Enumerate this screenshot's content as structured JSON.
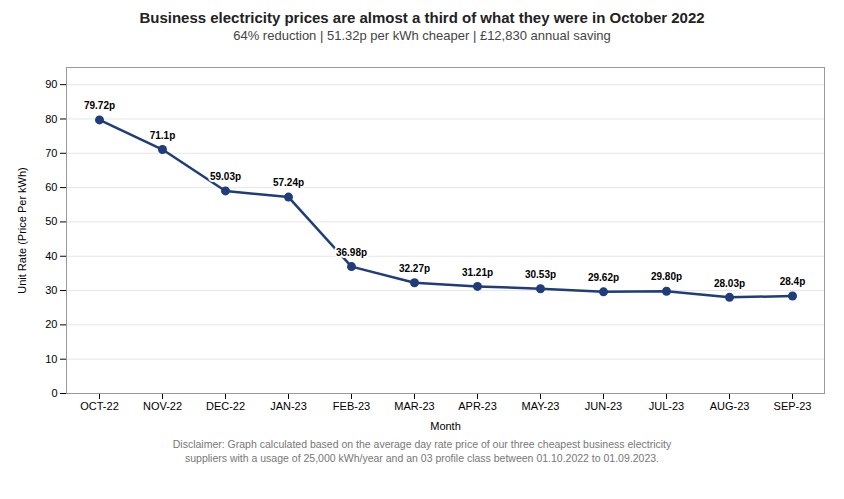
{
  "chart_data": {
    "type": "line",
    "title": "Business electricity prices are almost a third of what they were in October 2022",
    "subtitle": "64% reduction | 51.32p per kWh cheaper | £12,830 annual saving",
    "x_label": "Month",
    "y_label": "Unit Rate (Price Per kWh)",
    "categories": [
      "OCT-22",
      "NOV-22",
      "DEC-22",
      "JAN-23",
      "FEB-23",
      "MAR-23",
      "APR-23",
      "MAY-23",
      "JUN-23",
      "JUL-23",
      "AUG-23",
      "SEP-23"
    ],
    "values": [
      79.72,
      71.1,
      59.03,
      57.24,
      36.98,
      32.27,
      31.21,
      30.53,
      29.62,
      29.8,
      28.03,
      28.4
    ],
    "value_labels": [
      "79.72p",
      "71.1p",
      "59.03p",
      "57.24p",
      "36.98p",
      "32.27p",
      "31.21p",
      "30.53p",
      "29.62p",
      "29.80p",
      "28.03p",
      "28.4p"
    ],
    "data_labels": true,
    "color": "#1f3d7a",
    "marker": "circle",
    "ylim": [
      0,
      95
    ],
    "yticks": [
      0,
      10,
      20,
      30,
      40,
      50,
      60,
      70,
      80,
      90
    ],
    "grid": true,
    "annotations": [
      "Disclaimer: Graph calculated based on the average day rate price of our three cheapest business electricity",
      "suppliers with a usage of 25,000 kWh/year and an 03 profile class between 01.10.2022 to 01.09.2023."
    ]
  }
}
